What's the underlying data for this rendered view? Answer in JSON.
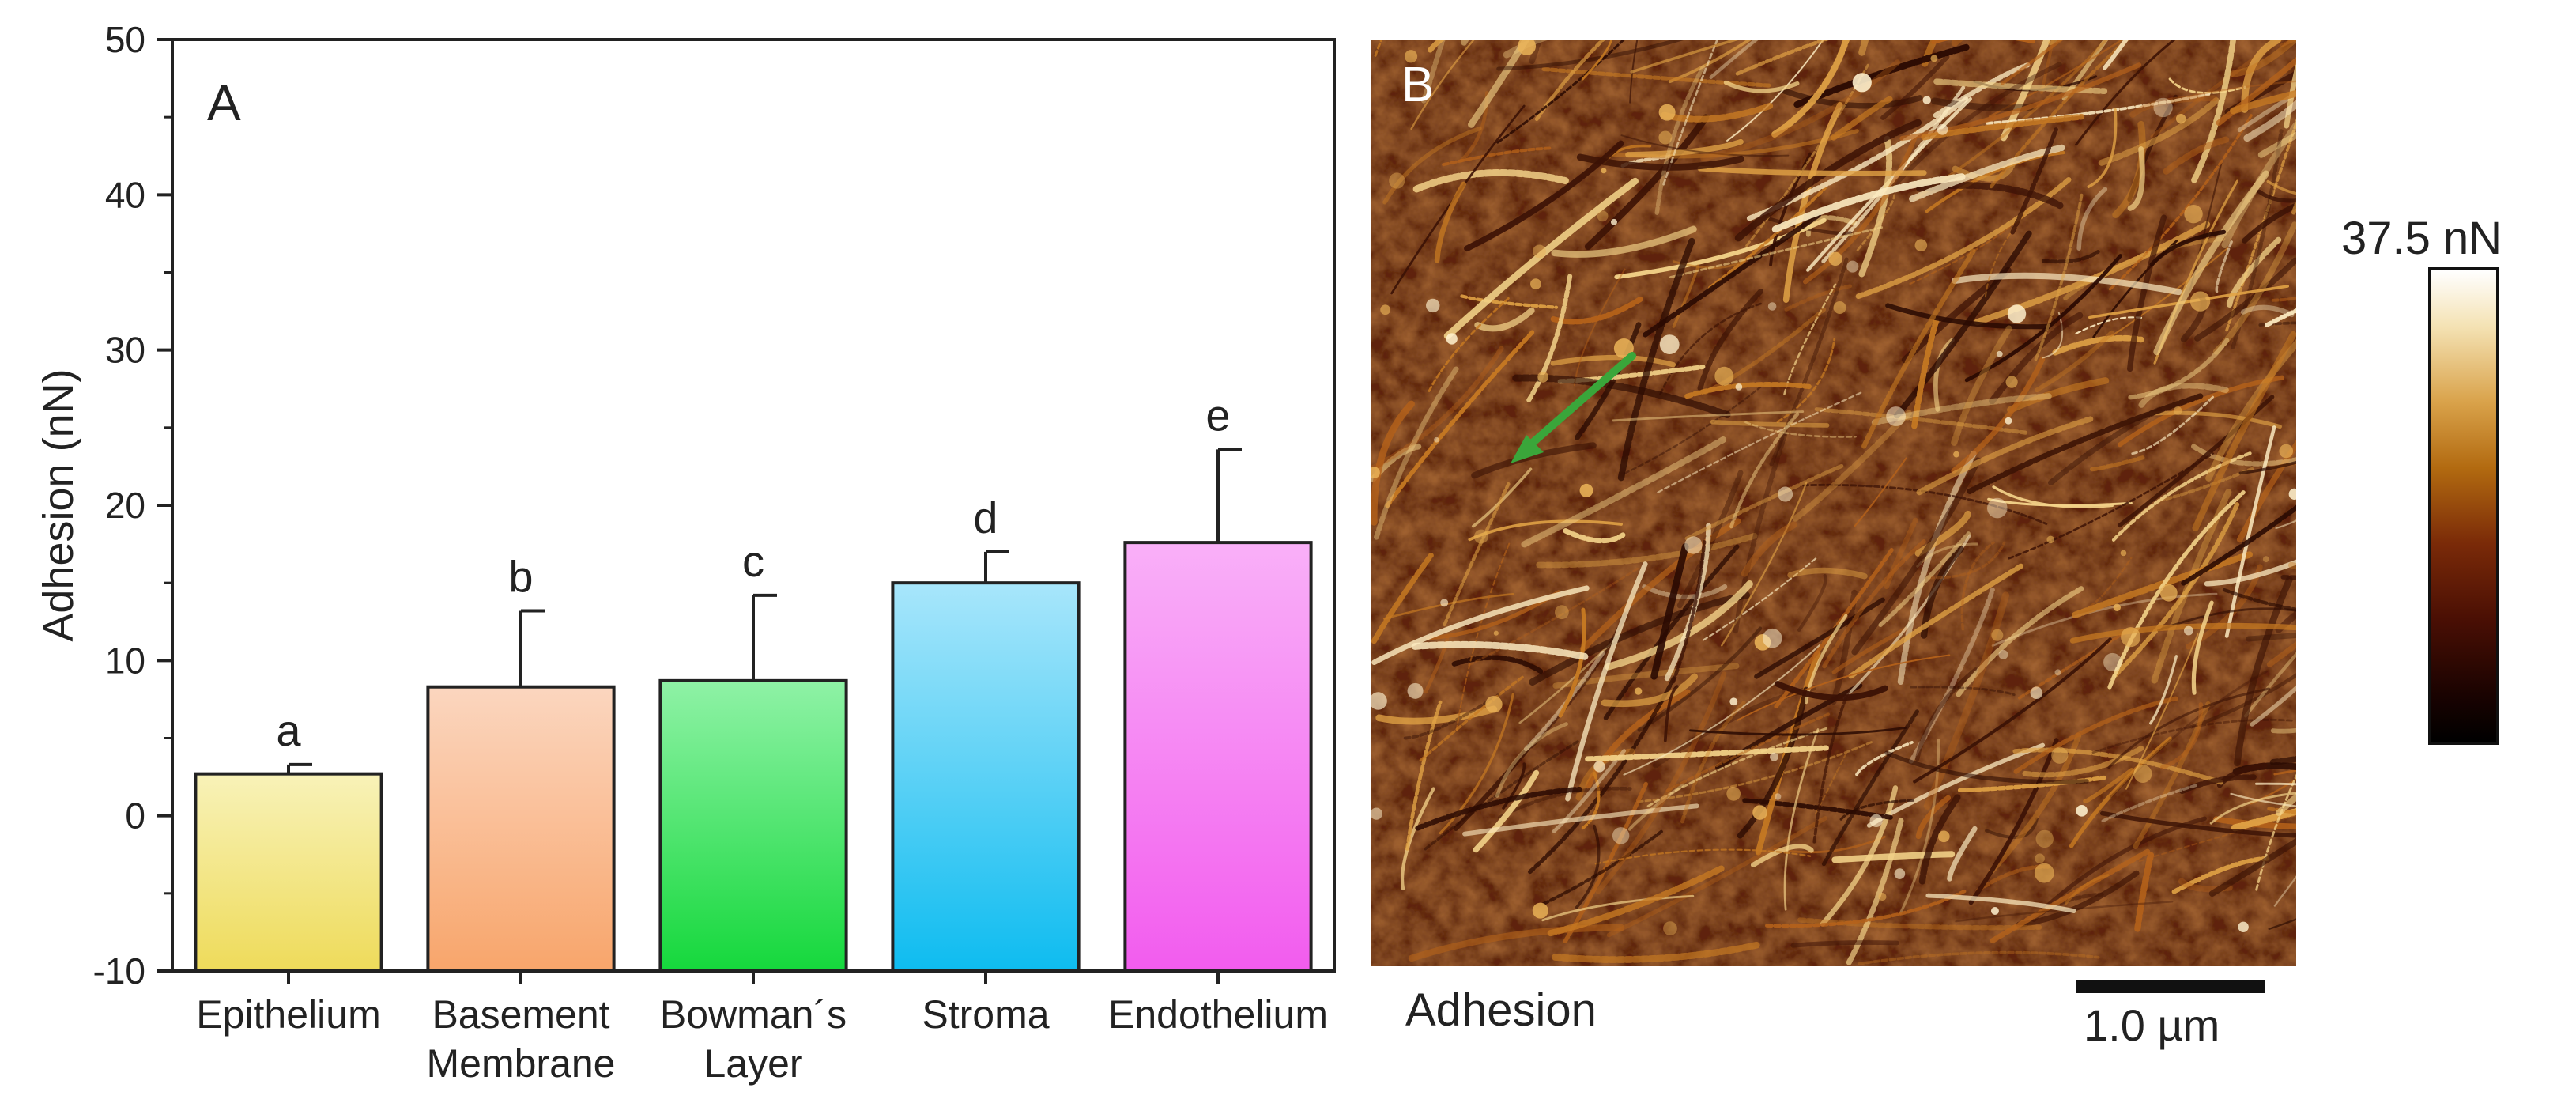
{
  "chart_data": {
    "type": "bar",
    "panel_label": "A",
    "categories": [
      "Epithelium",
      "Basement Membrane",
      "Bowman´s Layer",
      "Stroma",
      "Endothelium"
    ],
    "category_lines": [
      [
        "Epithelium"
      ],
      [
        "Basement",
        "Membrane"
      ],
      [
        "Bowman´s",
        "Layer"
      ],
      [
        "Stroma"
      ],
      [
        "Endothelium"
      ]
    ],
    "values": [
      2.7,
      8.3,
      8.7,
      15.0,
      17.6
    ],
    "errors": [
      0.6,
      4.9,
      5.5,
      2.0,
      6.0
    ],
    "significance_letters": [
      "a",
      "b",
      "c",
      "d",
      "e"
    ],
    "bar_colors": [
      [
        "#f8f2b8",
        "#eedb5a"
      ],
      [
        "#fbd6bf",
        "#f8a56b"
      ],
      [
        "#8ff2a6",
        "#15d83c"
      ],
      [
        "#a8e6fb",
        "#0ebcf0"
      ],
      [
        "#f9b0f8",
        "#f25cee"
      ]
    ],
    "ylabel": "Adhesion (nN)",
    "ylim": [
      -10,
      50
    ],
    "yticks": [
      -10,
      0,
      10,
      20,
      30,
      40,
      50
    ],
    "grid": false
  },
  "panel_b": {
    "label": "B",
    "caption": "Adhesion",
    "scalebar_label": "1.0 µm",
    "colorbar_max_label": "37.5 nN",
    "arrow_color": "#3aa63a"
  }
}
